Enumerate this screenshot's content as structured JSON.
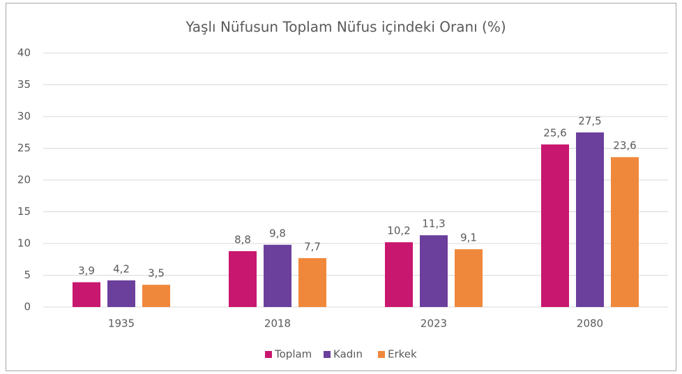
{
  "chart_data": {
    "type": "bar",
    "title": "Yaşlı Nüfusun Toplam Nüfus içindeki Oranı (%)",
    "categories": [
      "1935",
      "2018",
      "2023",
      "2080"
    ],
    "series": [
      {
        "name": "Toplam",
        "color": "#c8176f",
        "values": [
          3.9,
          8.8,
          10.2,
          25.6
        ],
        "value_labels": [
          "3,9",
          "8,8",
          "10,2",
          "25,6"
        ]
      },
      {
        "name": "Kadın",
        "color": "#6b3f9c",
        "values": [
          4.2,
          9.8,
          11.3,
          27.5
        ],
        "value_labels": [
          "4,2",
          "9,8",
          "11,3",
          "27,5"
        ]
      },
      {
        "name": "Erkek",
        "color": "#f0883c",
        "values": [
          3.5,
          7.7,
          9.1,
          23.6
        ],
        "value_labels": [
          "3,5",
          "7,7",
          "9,1",
          "23,6"
        ]
      }
    ],
    "ylim": [
      0,
      40
    ],
    "yticks": [
      0,
      5,
      10,
      15,
      20,
      25,
      30,
      35,
      40
    ],
    "grid": true,
    "legend": "bottom"
  }
}
